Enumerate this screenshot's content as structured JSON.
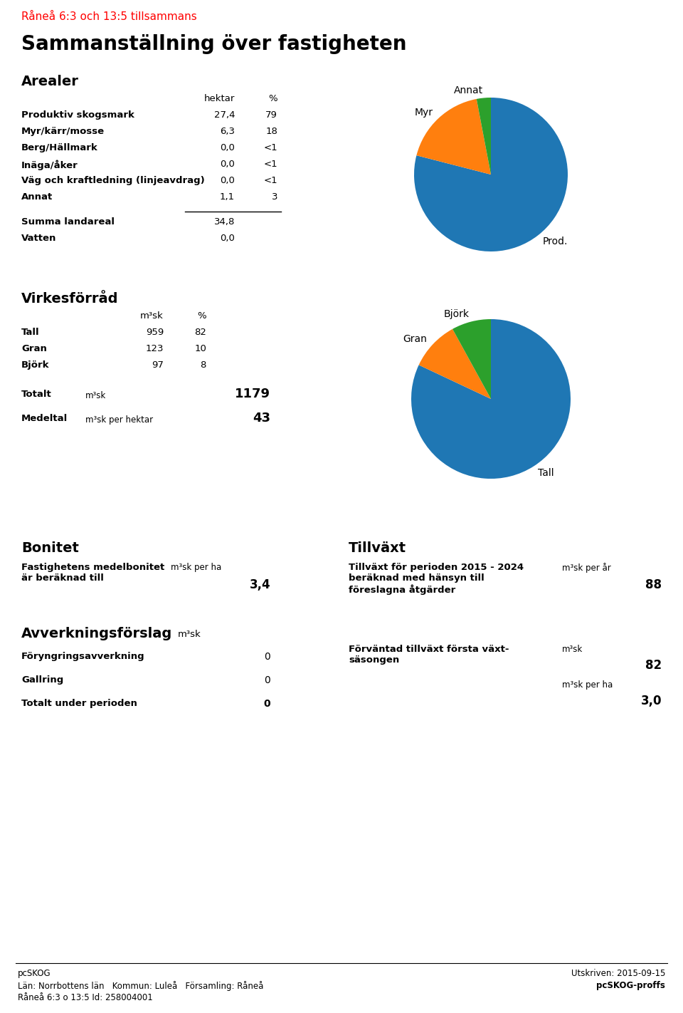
{
  "subtitle": "Råneå 6:3 och 13:5 tillsammans",
  "title": "Sammanställning över fastigheten",
  "arealer": {
    "heading": "Arealer",
    "columns": [
      "hektar",
      "%"
    ],
    "rows": [
      [
        "Produktiv skogsmark",
        "27,4",
        "79"
      ],
      [
        "Myr/kärr/mosse",
        "6,3",
        "18"
      ],
      [
        "Berg/Hällmark",
        "0,0",
        "<1"
      ],
      [
        "Inäga/åker",
        "0,0",
        "<1"
      ],
      [
        "Väg och kraftledning (linjeavdrag)",
        "0,0",
        "<1"
      ],
      [
        "Annat",
        "1,1",
        "3"
      ]
    ],
    "totals": [
      [
        "Summa landareal",
        "34,8"
      ],
      [
        "Vatten",
        "0,0"
      ]
    ]
  },
  "virkesforrad": {
    "heading": "Virkesförråd",
    "columns": [
      "m³sk",
      "%"
    ],
    "rows": [
      [
        "Tall",
        "959",
        "82"
      ],
      [
        "Gran",
        "123",
        "10"
      ],
      [
        "Björk",
        "97",
        "8"
      ]
    ],
    "summary": [
      [
        "Totalt",
        "m³sk",
        "1179"
      ],
      [
        "Medeltal",
        "m³sk per hektar",
        "43"
      ]
    ]
  },
  "bonitet": {
    "heading": "Bonitet",
    "description": "Fastighetens medelbonitet\när beräknad till",
    "unit": "m³sk per ha",
    "value": "3,4"
  },
  "tillvaxt": {
    "heading": "Tillväxt",
    "description": "Tillväxt för perioden 2015 - 2024\nberäknad med hänsyn till\nföreslagna åtgärder",
    "unit": "m³sk per år",
    "value": "88"
  },
  "avverkning": {
    "heading": "Avverkningsförslag",
    "unit": "m³sk",
    "rows": [
      [
        "Föryngringsavverkning",
        "0"
      ],
      [
        "Gallring",
        "0"
      ],
      [
        "Totalt under perioden",
        "0"
      ]
    ]
  },
  "forvantad": {
    "description": "Förväntad tillväxt första växt-\nsäsongen",
    "items": [
      [
        "m³sk",
        "82"
      ],
      [
        "m³sk per ha",
        "3,0"
      ]
    ]
  },
  "footer": {
    "left": [
      "pcSKOG",
      "Län: Norrbottens län   Kommun: Luleå   Församling: Råneå",
      "Råneå 6:3 o 13:5 Id: 258004001"
    ],
    "right": [
      "Utskriven: 2015-09-15",
      "pcSKOG-proffs"
    ]
  },
  "chart_data": [
    {
      "type": "pie",
      "categories": [
        "Prod.",
        "Myr",
        "Annat"
      ],
      "values": [
        79,
        18,
        3
      ]
    },
    {
      "type": "pie",
      "categories": [
        "Tall",
        "Gran",
        "Björk"
      ],
      "values": [
        82,
        10,
        8
      ]
    }
  ]
}
